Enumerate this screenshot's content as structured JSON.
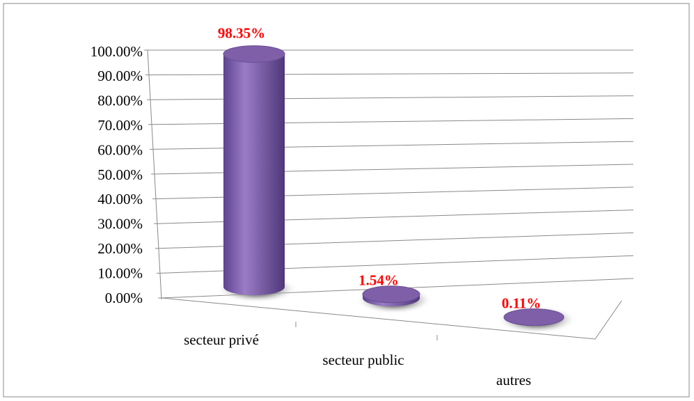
{
  "chart_data": {
    "type": "bar3d",
    "categories": [
      "secteur privé",
      "secteur public",
      "autres"
    ],
    "values": [
      98.35,
      1.54,
      0.11
    ],
    "value_labels": [
      "98.35%",
      "1.54%",
      "0.11%"
    ],
    "color": "#7e5fa8",
    "label_color": "#ff0000",
    "ylim": [
      0,
      100
    ],
    "yticks": [
      {
        "value": 0,
        "label": "0.00%"
      },
      {
        "value": 10,
        "label": "10.00%"
      },
      {
        "value": 20,
        "label": "20.00%"
      },
      {
        "value": 30,
        "label": "30.00%"
      },
      {
        "value": 40,
        "label": "40.00%"
      },
      {
        "value": 50,
        "label": "50.00%"
      },
      {
        "value": 60,
        "label": "60.00%"
      },
      {
        "value": 70,
        "label": "70.00%"
      },
      {
        "value": 80,
        "label": "80.00%"
      },
      {
        "value": 90,
        "label": "90.00%"
      },
      {
        "value": 100,
        "label": "100.00%"
      }
    ],
    "grid": true
  }
}
